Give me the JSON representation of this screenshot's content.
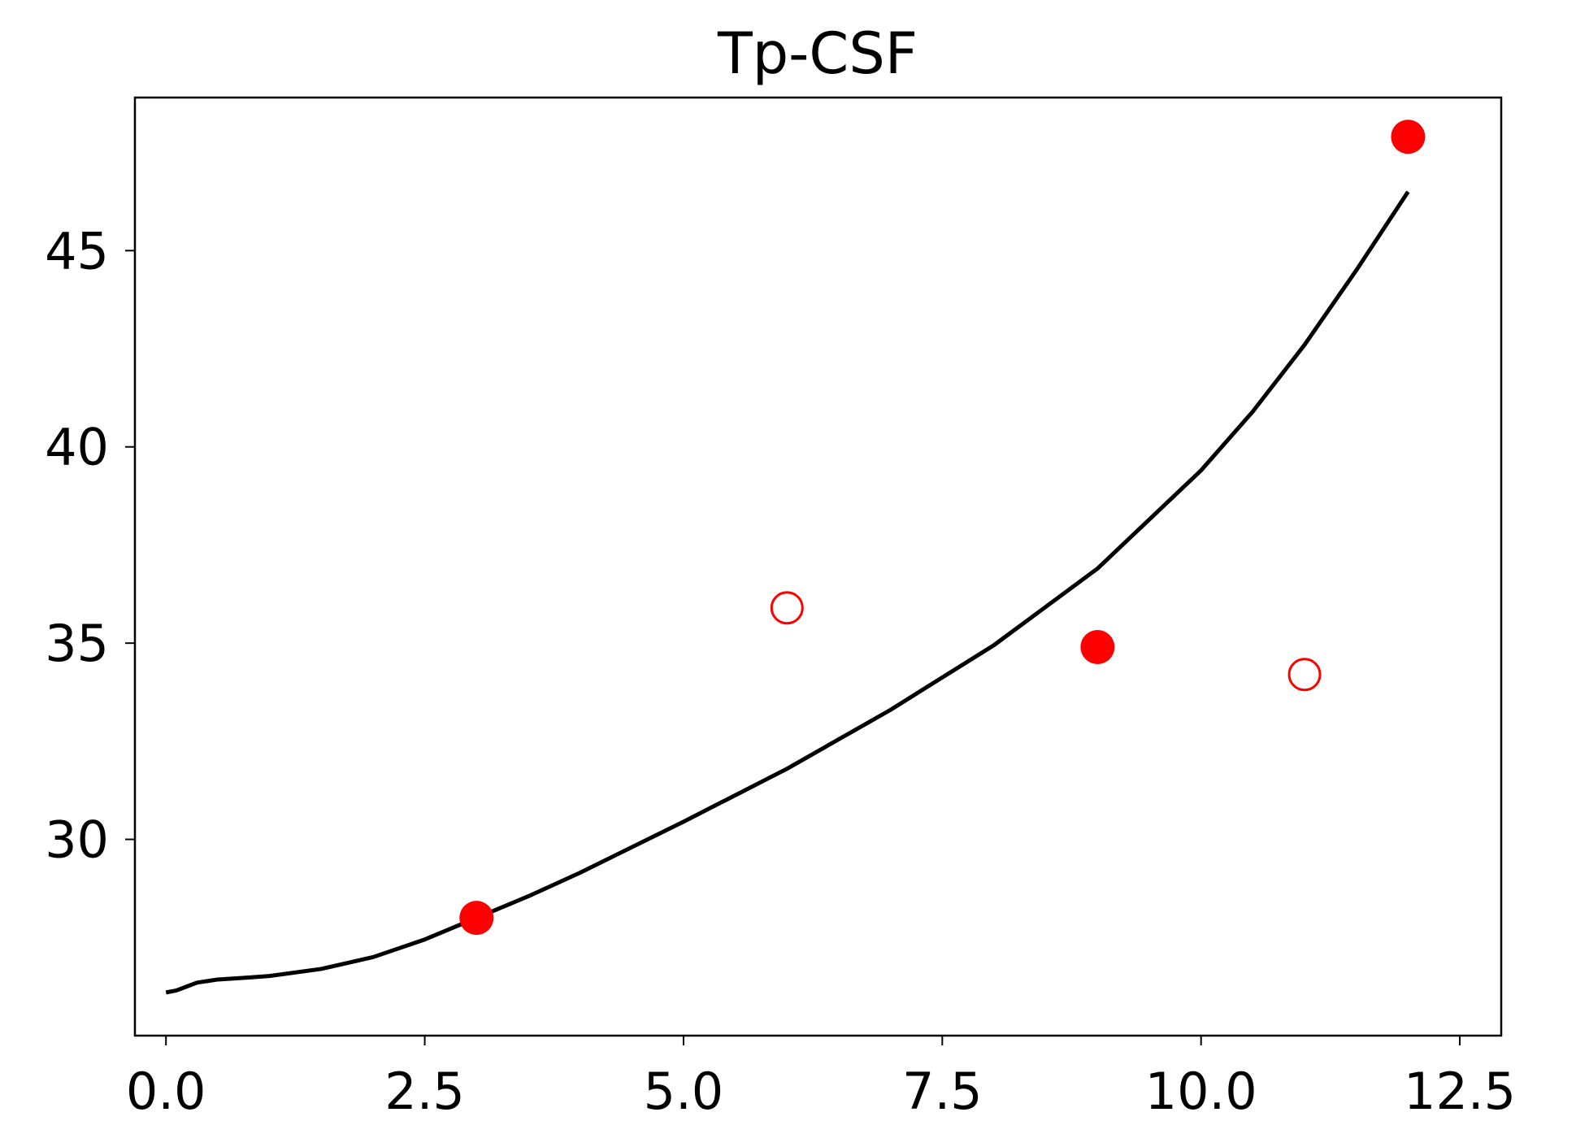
{
  "chart_data": {
    "type": "scatter",
    "title": "Tp-CSF",
    "xlabel": "",
    "ylabel": "",
    "xlim": [
      -0.3,
      12.9
    ],
    "ylim": [
      25.0,
      48.9
    ],
    "xticks": [
      0.0,
      2.5,
      5.0,
      7.5,
      10.0,
      12.5
    ],
    "xtick_labels": [
      "0.0",
      "2.5",
      "5.0",
      "7.5",
      "10.0",
      "12.5"
    ],
    "yticks": [
      30,
      35,
      40,
      45
    ],
    "ytick_labels": [
      "30",
      "35",
      "40",
      "45"
    ],
    "grid": false,
    "legend": "none",
    "series": [
      {
        "kind": "line",
        "color": "#000000",
        "x": [
          0.0,
          0.1,
          0.2,
          0.3,
          0.5,
          0.8,
          1.0,
          1.5,
          2.0,
          2.5,
          3.0,
          3.5,
          4.0,
          5.0,
          6.0,
          7.0,
          8.0,
          9.0,
          10.0,
          10.5,
          11.0,
          11.5,
          12.0
        ],
        "y": [
          26.1,
          26.15,
          26.25,
          26.35,
          26.43,
          26.48,
          26.52,
          26.7,
          27.0,
          27.45,
          28.0,
          28.55,
          29.15,
          30.45,
          31.8,
          33.3,
          34.95,
          36.9,
          39.4,
          40.9,
          42.6,
          44.5,
          46.5
        ]
      },
      {
        "kind": "scatter-filled",
        "color": "#ff0000",
        "x": [
          3,
          9,
          12
        ],
        "y": [
          28.0,
          34.9,
          47.9
        ]
      },
      {
        "kind": "scatter-open",
        "color": "#ff0000",
        "x": [
          6,
          11
        ],
        "y": [
          35.9,
          34.2
        ]
      }
    ]
  }
}
